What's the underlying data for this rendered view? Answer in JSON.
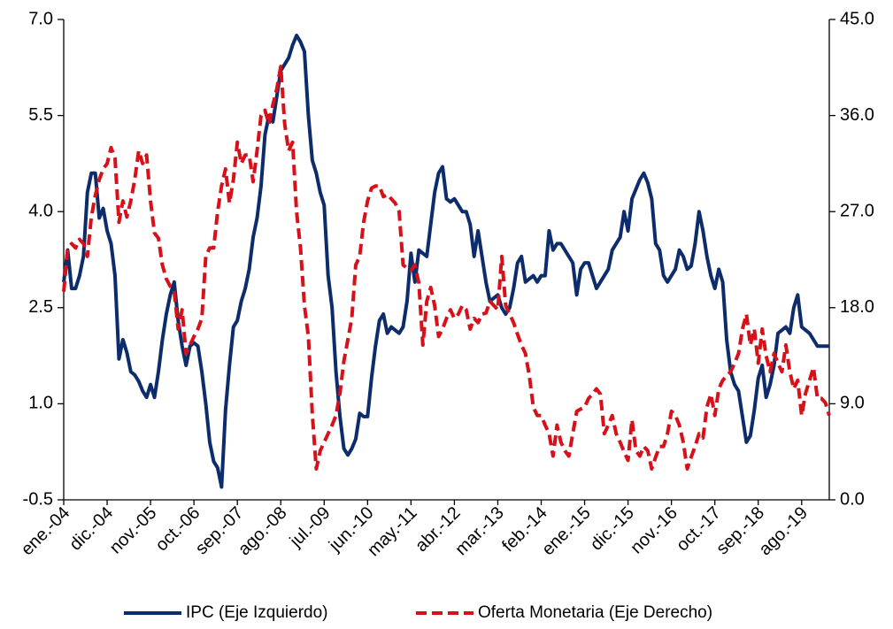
{
  "chart_data": {
    "type": "line",
    "categories": [
      "ene.-04",
      null,
      null,
      null,
      null,
      null,
      null,
      null,
      null,
      null,
      null,
      "dic.-04",
      null,
      null,
      null,
      null,
      null,
      null,
      null,
      null,
      null,
      null,
      "nov.-05",
      null,
      null,
      null,
      null,
      null,
      null,
      null,
      null,
      null,
      null,
      "oct.-06",
      null,
      null,
      null,
      null,
      null,
      null,
      null,
      null,
      null,
      null,
      "sep.-07",
      null,
      null,
      null,
      null,
      null,
      null,
      null,
      null,
      null,
      null,
      "ago.-08",
      null,
      null,
      null,
      null,
      null,
      null,
      null,
      null,
      null,
      null,
      "jul.-09",
      null,
      null,
      null,
      null,
      null,
      null,
      null,
      null,
      null,
      null,
      "jun.-10",
      null,
      null,
      null,
      null,
      null,
      null,
      null,
      null,
      null,
      null,
      "may.-11",
      null,
      null,
      null,
      null,
      null,
      null,
      null,
      null,
      null,
      null,
      "abr.-12",
      null,
      null,
      null,
      null,
      null,
      null,
      null,
      null,
      null,
      null,
      "mar.-13",
      null,
      null,
      null,
      null,
      null,
      null,
      null,
      null,
      null,
      null,
      "feb.-14",
      null,
      null,
      null,
      null,
      null,
      null,
      null,
      null,
      null,
      null,
      "ene.-15",
      null,
      null,
      null,
      null,
      null,
      null,
      null,
      null,
      null,
      null,
      "dic.-15",
      null,
      null,
      null,
      null,
      null,
      null,
      null,
      null,
      null,
      null,
      "nov.-16",
      null,
      null,
      null,
      null,
      null,
      null,
      null,
      null,
      null,
      null,
      "oct.-17",
      null,
      null,
      null,
      null,
      null,
      null,
      null,
      null,
      null,
      null,
      "sep.-18",
      null,
      null,
      null,
      null,
      null,
      null,
      null,
      null,
      null,
      null,
      "ago.-19",
      null,
      null,
      null,
      null,
      null,
      null,
      null
    ],
    "series": [
      {
        "name": "IPC (Eje Izquierdo)",
        "color": "#0d2c6c",
        "dashed": false,
        "values": [
          2.9,
          3.4,
          2.8,
          2.8,
          3.0,
          3.3,
          4.3,
          4.6,
          4.6,
          3.9,
          4.05,
          3.7,
          3.5,
          3.0,
          1.7,
          2.0,
          1.8,
          1.5,
          1.45,
          1.35,
          1.2,
          1.1,
          1.3,
          1.1,
          1.5,
          2.0,
          2.4,
          2.7,
          2.9,
          2.3,
          1.9,
          1.6,
          1.9,
          1.95,
          1.9,
          1.5,
          1.0,
          0.4,
          0.1,
          0.0,
          -0.3,
          0.9,
          1.6,
          2.2,
          2.3,
          2.6,
          2.8,
          3.1,
          3.6,
          3.9,
          4.4,
          5.2,
          5.5,
          5.4,
          5.8,
          6.2,
          6.3,
          6.4,
          6.6,
          6.75,
          6.65,
          6.5,
          5.5,
          4.8,
          4.6,
          4.3,
          4.1,
          3.0,
          2.5,
          1.5,
          0.8,
          0.3,
          0.2,
          0.3,
          0.45,
          0.85,
          0.8,
          0.8,
          1.4,
          1.9,
          2.3,
          2.4,
          2.1,
          2.2,
          2.15,
          2.1,
          2.2,
          2.6,
          3.35,
          2.9,
          3.4,
          3.35,
          3.3,
          3.8,
          4.3,
          4.6,
          4.7,
          4.2,
          4.15,
          4.2,
          4.1,
          4.0,
          4.0,
          3.8,
          3.3,
          3.7,
          3.3,
          2.9,
          2.6,
          2.65,
          2.7,
          2.5,
          2.4,
          2.5,
          2.8,
          3.2,
          3.3,
          2.9,
          2.95,
          3.0,
          2.9,
          3.0,
          3.0,
          3.7,
          3.4,
          3.5,
          3.5,
          3.4,
          3.3,
          3.2,
          2.7,
          3.1,
          3.2,
          3.2,
          3.0,
          2.8,
          2.9,
          3.0,
          3.1,
          3.4,
          3.5,
          3.6,
          4.0,
          3.7,
          4.2,
          4.35,
          4.5,
          4.6,
          4.45,
          4.2,
          3.5,
          3.4,
          3.0,
          2.9,
          3.0,
          3.1,
          3.4,
          3.3,
          3.1,
          3.15,
          3.5,
          4.0,
          3.7,
          3.3,
          3.0,
          2.8,
          3.1,
          2.9,
          2.0,
          1.5,
          1.3,
          1.2,
          0.8,
          0.4,
          0.5,
          0.9,
          1.4,
          1.6,
          1.1,
          1.3,
          1.6,
          2.1,
          2.15,
          2.2,
          2.1,
          2.5,
          2.7,
          2.2,
          2.15,
          2.1,
          2.0,
          1.9,
          1.9,
          1.9,
          1.9
        ]
      },
      {
        "name": "Oferta Monetaria (Eje Derecho)",
        "color": "#d7111a",
        "dashed": true,
        "axis": "y2",
        "values": [
          19.5,
          23.5,
          24,
          23.6,
          24.4,
          24,
          22.8,
          26.5,
          28.5,
          30,
          31,
          31.5,
          33,
          32,
          26,
          28,
          26.5,
          28,
          30,
          32.7,
          31.5,
          32.3,
          28,
          25,
          24.5,
          22,
          20.7,
          20,
          19.5,
          16,
          17.8,
          13.7,
          14.5,
          15.3,
          16,
          17,
          22.8,
          23.6,
          23.6,
          27,
          29.4,
          31,
          27.8,
          30,
          33.5,
          31.5,
          32.3,
          32.3,
          29.8,
          32.7,
          36,
          36.5,
          35.2,
          37,
          38.5,
          40.6,
          35.2,
          32.7,
          33.5,
          27,
          23.6,
          18.2,
          15.3,
          8,
          2.9,
          4.6,
          5.4,
          6.2,
          7,
          7.9,
          10,
          13,
          15,
          17,
          22,
          22.8,
          26,
          28,
          29.2,
          29.4,
          29.4,
          28.4,
          28.6,
          28.2,
          27.8,
          27,
          22,
          21.7,
          21.5,
          22,
          20.3,
          14.5,
          18.6,
          19.9,
          18.2,
          15.3,
          16,
          17,
          17.8,
          17,
          17.4,
          18.2,
          17.8,
          16,
          17,
          16.6,
          17.4,
          17.5,
          18.6,
          18.2,
          17.8,
          22.8,
          18.2,
          17.4,
          16.6,
          15.5,
          14.5,
          13.7,
          11.6,
          8.7,
          7.9,
          7.9,
          7,
          6.2,
          4.1,
          7,
          5.4,
          4.6,
          4.1,
          6.2,
          8.3,
          8.5,
          8.7,
          9.5,
          9.9,
          10.4,
          9.9,
          6.2,
          7,
          7.9,
          6.2,
          5.4,
          4.5,
          3.7,
          7.5,
          4.6,
          4.1,
          5,
          4.6,
          2.9,
          4,
          5,
          5,
          6.2,
          8.3,
          7.9,
          7,
          5.4,
          2.9,
          4,
          5,
          6.2,
          5.8,
          8.7,
          9.9,
          7.9,
          10.4,
          11.2,
          11.6,
          12,
          12.8,
          13.7,
          16,
          17.4,
          14.5,
          16,
          12.8,
          16,
          13.5,
          12,
          13.7,
          12.8,
          12,
          14.5,
          12,
          10.4,
          11.2,
          7.9,
          10,
          11.2,
          12.4,
          9.5,
          9.5,
          9.1,
          7.9
        ]
      }
    ],
    "ylim": [
      -0.5,
      7.0
    ],
    "yticks": [
      -0.5,
      {
        "value": 1,
        "label": "1.0"
      },
      2.5,
      {
        "value": 4,
        "label": "4.0"
      },
      5.5,
      {
        "value": 7,
        "label": "7.0"
      }
    ],
    "y2lim": [
      0,
      45
    ],
    "y2ticks": [
      {
        "value": 0,
        "label": "0.0"
      },
      {
        "value": 9,
        "label": "9.0"
      },
      {
        "value": 18,
        "label": "18.0"
      },
      {
        "value": 27,
        "label": "27.0"
      },
      {
        "value": 36,
        "label": "36.0"
      },
      {
        "value": 45,
        "label": "45.0"
      }
    ],
    "grid": false,
    "legend": "bottom"
  }
}
